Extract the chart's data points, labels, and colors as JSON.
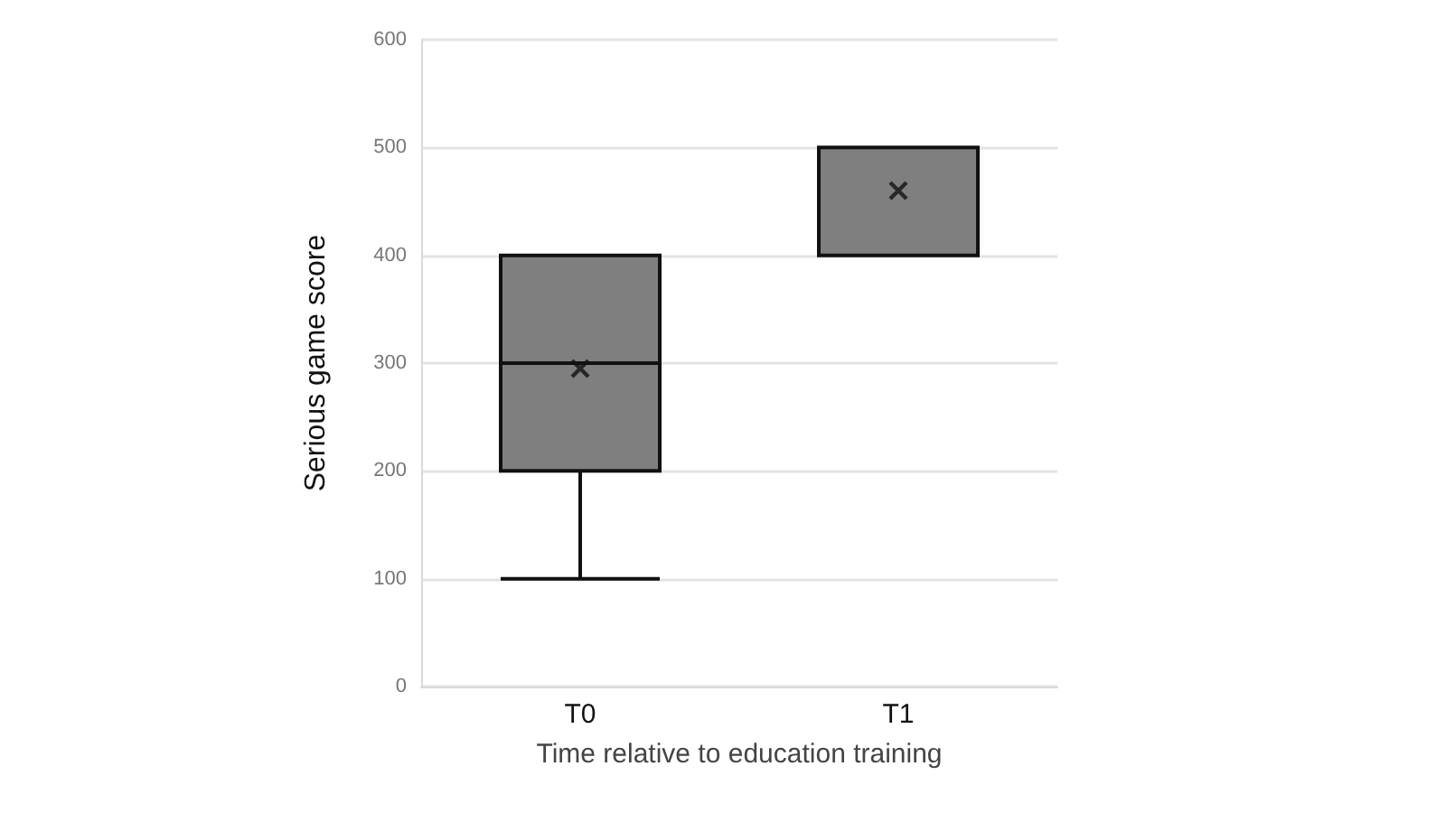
{
  "chart_data": {
    "type": "box",
    "xlabel": "Time relative to education training",
    "ylabel": "Serious game score",
    "categories": [
      "T0",
      "T1"
    ],
    "boxes": [
      {
        "low": 100,
        "q1": 200,
        "median": 300,
        "q3": 400,
        "high": 400,
        "mean": 295
      },
      {
        "low": 400,
        "q1": 400,
        "median": 500,
        "q3": 500,
        "high": 500,
        "mean": 460
      }
    ],
    "color": "#7f7f7f",
    "ylim": [
      0,
      600
    ],
    "yticks": [
      0,
      100,
      200,
      300,
      400,
      500,
      600
    ],
    "grid": "y",
    "marker": "cross"
  }
}
